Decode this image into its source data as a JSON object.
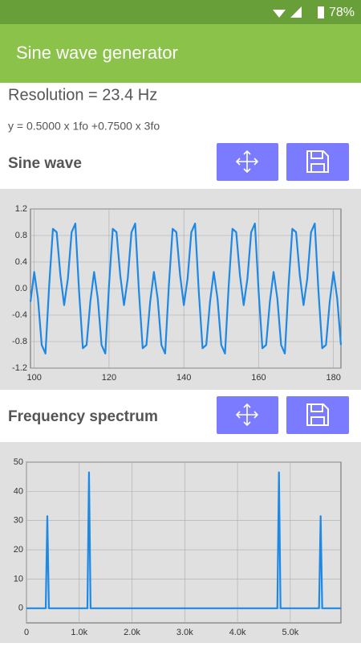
{
  "status_bar": {
    "battery": "78%"
  },
  "app_bar": {
    "title": "Sine wave generator"
  },
  "info": {
    "resolution": "Resolution = 23.4 Hz",
    "formula": "y = 0.5000 x 1fo +0.7500 x 3fo"
  },
  "chart_data": [
    {
      "type": "line",
      "title": "Sine wave",
      "color": "#1e88e5",
      "grid": true,
      "x": [
        99,
        100,
        101,
        102,
        103,
        104,
        105,
        106,
        107,
        108,
        109,
        110,
        111,
        112,
        113,
        114,
        115,
        116,
        117,
        118,
        119,
        120,
        121,
        122,
        123,
        124,
        125,
        126,
        127,
        128,
        129,
        130,
        131,
        132,
        133,
        134,
        135,
        136,
        137,
        138,
        139,
        140,
        141,
        142,
        143,
        144,
        145,
        146,
        147,
        148,
        149,
        150,
        151,
        152,
        153,
        154,
        155,
        156,
        157,
        158,
        159,
        160,
        161,
        162,
        163,
        164,
        165,
        166,
        167,
        168,
        169,
        170,
        171,
        172,
        173,
        174,
        175,
        176,
        177,
        178,
        179,
        180,
        181,
        182
      ],
      "values": [
        -0.2,
        0.25,
        -0.15,
        -0.85,
        -0.98,
        0.05,
        0.9,
        0.85,
        0.2,
        -0.25,
        0.15,
        0.85,
        0.98,
        -0.05,
        -0.9,
        -0.85,
        -0.2,
        0.25,
        -0.15,
        -0.85,
        -0.98,
        0.05,
        0.9,
        0.85,
        0.2,
        -0.25,
        0.15,
        0.85,
        0.98,
        -0.05,
        -0.9,
        -0.85,
        -0.2,
        0.25,
        -0.15,
        -0.85,
        -0.98,
        0.05,
        0.9,
        0.85,
        0.2,
        -0.25,
        0.15,
        0.85,
        0.98,
        -0.05,
        -0.9,
        -0.85,
        -0.2,
        0.25,
        -0.15,
        -0.85,
        -0.98,
        0.05,
        0.9,
        0.85,
        0.2,
        -0.25,
        0.15,
        0.85,
        0.98,
        -0.05,
        -0.9,
        -0.85,
        -0.2,
        0.25,
        -0.15,
        -0.85,
        -0.98,
        0.05,
        0.9,
        0.85,
        0.2,
        -0.25,
        0.15,
        0.85,
        0.98,
        -0.05,
        -0.9,
        -0.85,
        -0.2,
        0.25,
        -0.15,
        -0.85
      ],
      "xlim": [
        99,
        182
      ],
      "xticks": [
        100,
        120,
        140,
        160,
        180
      ],
      "ylim": [
        -1.2,
        1.2
      ],
      "yticks": [
        -1.2,
        -0.8,
        -0.4,
        {
          "value": 0,
          "label": "0.0"
        },
        0.4,
        0.8,
        1.2
      ]
    },
    {
      "type": "line",
      "title": "Frequency spectrum",
      "color": "#1e88e5",
      "grid": true,
      "x": [
        0,
        365,
        395,
        425,
        1155,
        1185,
        1215,
        4755,
        4785,
        4815,
        5545,
        5575,
        5605,
        5960
      ],
      "values": [
        0,
        0,
        31.5,
        0,
        0,
        46.5,
        0,
        0,
        46.5,
        0,
        0,
        31.5,
        0,
        0
      ],
      "xlim": [
        0,
        5960
      ],
      "xticks": [
        0,
        {
          "value": 1000,
          "label": "1.0k"
        },
        {
          "value": 2000,
          "label": "2.0k"
        },
        {
          "value": 3000,
          "label": "3.0k"
        },
        {
          "value": 4000,
          "label": "4.0k"
        },
        {
          "value": 5000,
          "label": "5.0k"
        }
      ],
      "ylim": [
        -5,
        50
      ],
      "yticks": [
        0,
        10,
        20,
        30,
        40,
        50
      ]
    }
  ]
}
